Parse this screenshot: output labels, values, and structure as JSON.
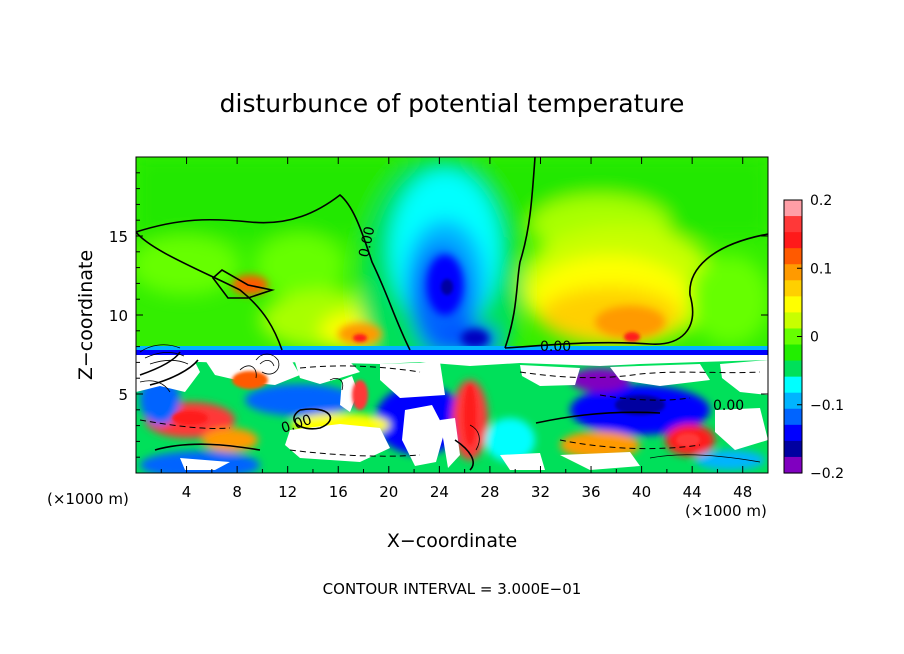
{
  "chart_data": {
    "type": "heatmap",
    "title": "disturbunce of potential temperature",
    "xlabel": "X−coordinate",
    "ylabel": "Z−coordinate",
    "x_unit_left": "(×1000 m)",
    "x_unit_right": "(×1000 m)",
    "footer": "CONTOUR INTERVAL = 3.000E−01",
    "xlim": [
      0,
      50
    ],
    "ylim": [
      0,
      20
    ],
    "x_ticks": [
      4,
      8,
      12,
      16,
      20,
      24,
      28,
      32,
      36,
      40,
      44,
      48
    ],
    "y_ticks": [
      5,
      10,
      15
    ],
    "colorbar": {
      "range": [
        -0.2,
        0.2
      ],
      "tick_values": [
        0.2,
        0.1,
        0,
        -0.1,
        -0.2
      ],
      "tick_labels": [
        "0.2",
        "0.1",
        "0",
        "−0.1",
        "−0.2"
      ],
      "colors": [
        "#ff9ea6",
        "#ff3838",
        "#ff1a1a",
        "#ff5a00",
        "#ff9a00",
        "#ffd000",
        "#ffff00",
        "#c8ff00",
        "#66ff00",
        "#22ee00",
        "#00e05a",
        "#00ffff",
        "#00b4ff",
        "#0064ff",
        "#0000ff",
        "#0000a0",
        "#8000c0"
      ]
    },
    "contour_labels": [
      "0.00",
      "0.00",
      "0.00",
      "0.00"
    ],
    "interface_height": 7.5,
    "regions": [
      {
        "x": 17.5,
        "z": 8.8,
        "value": 0.1
      },
      {
        "x": 39.0,
        "z": 8.8,
        "value": 0.11
      },
      {
        "x": 37.0,
        "z": 13.0,
        "value": 0.07
      },
      {
        "x": 24.0,
        "z": 12.0,
        "value": -0.17
      },
      {
        "x": 24.0,
        "z": 15.0,
        "value": -0.08
      },
      {
        "x": 26.5,
        "z": 8.5,
        "value": -0.16
      },
      {
        "x": 8.0,
        "z": 14.0,
        "value": 0.02
      },
      {
        "x": 45.0,
        "z": 14.0,
        "value": 0.02
      }
    ]
  }
}
